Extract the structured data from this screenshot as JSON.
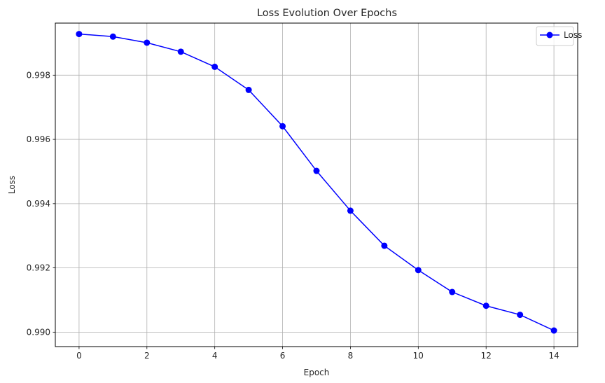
{
  "chart_data": {
    "type": "line",
    "title": "Loss Evolution Over Epochs",
    "xlabel": "Epoch",
    "ylabel": "Loss",
    "xlim": [
      -0.7,
      14.7
    ],
    "ylim": [
      0.98955,
      0.99962
    ],
    "xticks": [
      0,
      2,
      4,
      6,
      8,
      10,
      12,
      14
    ],
    "yticks": [
      0.99,
      0.992,
      0.994,
      0.996,
      0.998
    ],
    "ytick_labels": [
      "0.990",
      "0.992",
      "0.994",
      "0.996",
      "0.998"
    ],
    "grid": true,
    "legend_position": "top-right",
    "series": [
      {
        "name": "Loss",
        "color": "#0000ff",
        "marker": "circle",
        "x": [
          0,
          1,
          2,
          3,
          4,
          5,
          6,
          7,
          8,
          9,
          10,
          11,
          12,
          13,
          14
        ],
        "values": [
          0.99928,
          0.9992,
          0.99901,
          0.99873,
          0.99826,
          0.99754,
          0.99641,
          0.99502,
          0.99378,
          0.99269,
          0.99193,
          0.99125,
          0.99082,
          0.99054,
          0.99005
        ]
      }
    ]
  }
}
